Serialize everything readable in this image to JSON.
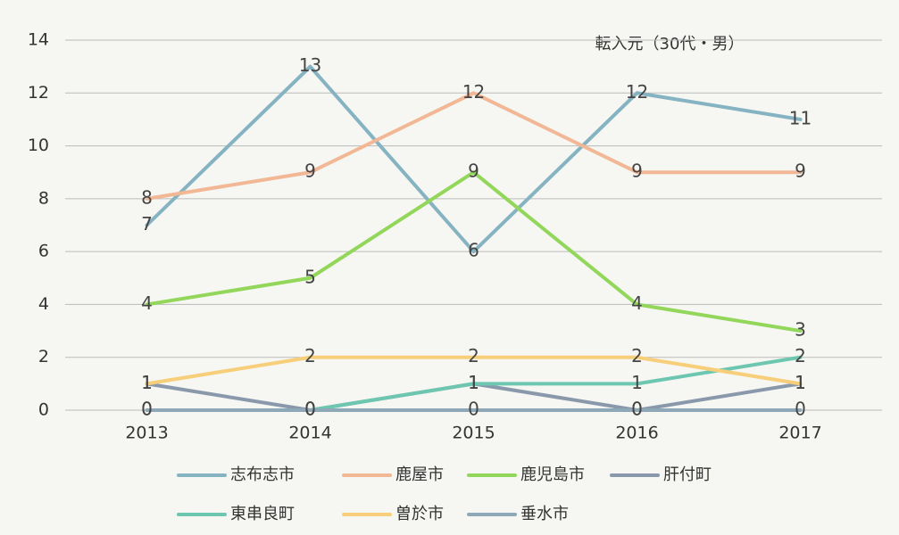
{
  "chart_data": {
    "type": "line",
    "title": "転入元（30代・男）",
    "categories": [
      "2013",
      "2014",
      "2015",
      "2016",
      "2017"
    ],
    "series": [
      {
        "name": "志布志市",
        "color": "#86b3c2",
        "values": [
          7,
          13,
          6,
          12,
          11
        ]
      },
      {
        "name": "鹿屋市",
        "color": "#f2b896",
        "values": [
          8,
          9,
          12,
          9,
          9
        ]
      },
      {
        "name": "鹿児島市",
        "color": "#92d65a",
        "values": [
          4,
          5,
          9,
          4,
          3
        ]
      },
      {
        "name": "肝付町",
        "color": "#8a98ab",
        "values": [
          1,
          0,
          1,
          0,
          1
        ]
      },
      {
        "name": "東串良町",
        "color": "#6cc6b0",
        "values": [
          0,
          0,
          1,
          1,
          2
        ]
      },
      {
        "name": "曽於市",
        "color": "#f7cf7a",
        "values": [
          1,
          2,
          2,
          2,
          1
        ]
      },
      {
        "name": "垂水市",
        "color": "#8fa8b8",
        "values": [
          0,
          0,
          0,
          0,
          0
        ]
      }
    ],
    "ylim": [
      0,
      14
    ],
    "yticks": [
      0,
      2,
      4,
      6,
      8,
      10,
      12,
      14
    ],
    "grid": true,
    "data_labels": true,
    "legend": "bottom"
  }
}
